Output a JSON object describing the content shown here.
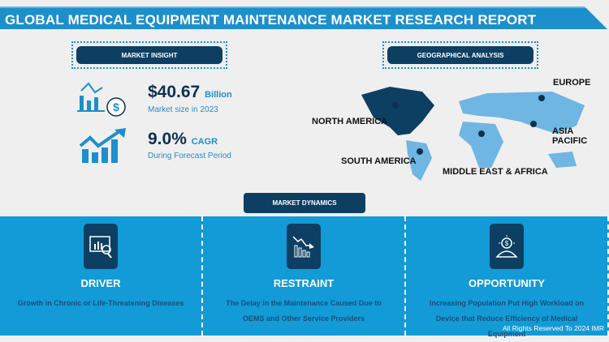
{
  "title": "GLOBAL MEDICAL EQUIPMENT MAINTENANCE MARKET RESEARCH REPORT",
  "market_insight": {
    "label": "MARKET INSIGHT",
    "size_value": "$40.67",
    "size_unit": "Billion",
    "size_caption": "Market size in 2023",
    "cagr_value": "9.0%",
    "cagr_unit": "CAGR",
    "cagr_caption": "During Forecast Period"
  },
  "geo": {
    "label": "GEOGRAPHICAL ANALYSIS",
    "regions": [
      "NORTH AMERICA",
      "EUROPE",
      "ASIA PACIFIC",
      "SOUTH AMERICA",
      "MIDDLE EAST & AFRICA"
    ],
    "highlight_color": "#0d3f63",
    "map_color": "#6fb6e3"
  },
  "dynamics": {
    "label": "MARKET DYNAMICS",
    "items": [
      {
        "title": "DRIVER",
        "desc": "Growth in Chronic or Life-Threatening Diseases",
        "icon": "chart-analysis-icon"
      },
      {
        "title": "RESTRAINT",
        "desc": "The Delay in the Maintenance Caused Due to OEMS and Other Service Providers",
        "icon": "declining-chart-icon"
      },
      {
        "title": "OPPORTUNITY",
        "desc": "Increasing Population Put High Workload on Device that Reduce Efficiency of Medical Equipment",
        "icon": "idea-bulb-icon"
      }
    ]
  },
  "copyright": "All Rights Reserved To 2024 IMR"
}
